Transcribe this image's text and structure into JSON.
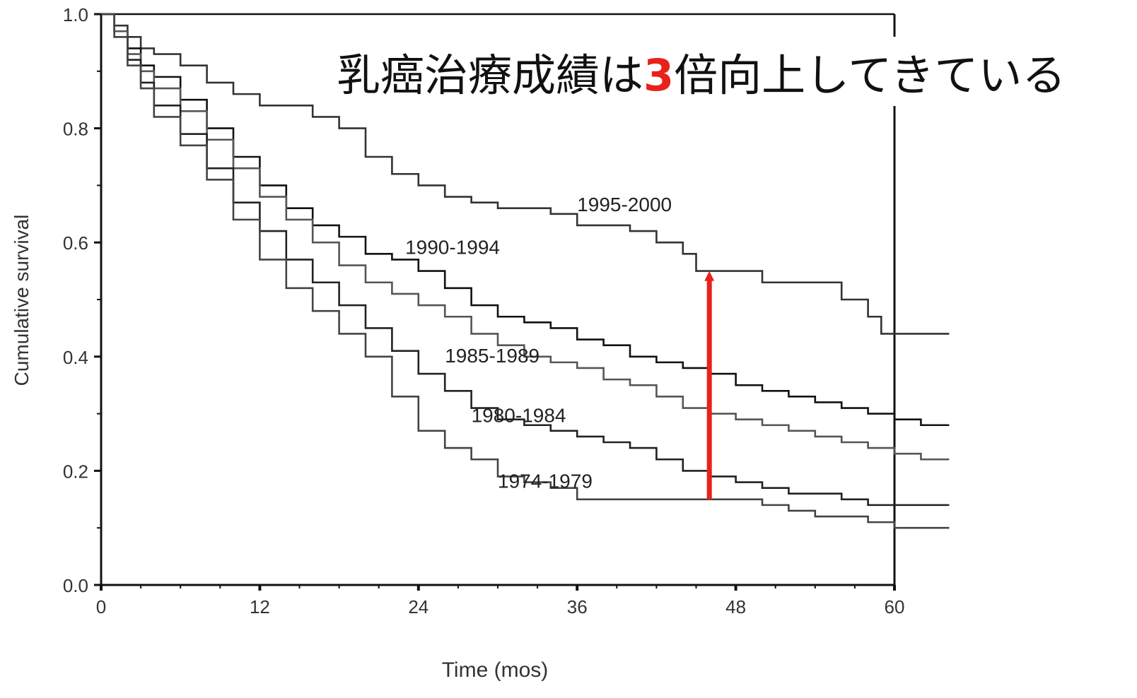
{
  "headline": {
    "before": "乳癌治療成績は",
    "emphasis": "3",
    "after": "倍向上してきている",
    "emphasis_color": "#e8221b"
  },
  "chart_data": {
    "type": "line",
    "subtype": "step",
    "xlabel": "Time (mos)",
    "ylabel": "Cumulative survival",
    "xlim": [
      0,
      62
    ],
    "ylim": [
      0,
      1.0
    ],
    "xticks": [
      0,
      12,
      24,
      36,
      48,
      60
    ],
    "yticks": [
      0.0,
      0.2,
      0.4,
      0.6,
      0.8,
      1.0
    ],
    "ytick_labels": [
      "0.0",
      "0.2",
      "0.4",
      "0.6",
      "0.8",
      "1.0"
    ],
    "grid": false,
    "series": [
      {
        "name": "1995-2000",
        "color": "#333333",
        "x": [
          0,
          1,
          2,
          3,
          4,
          6,
          8,
          10,
          12,
          14,
          16,
          18,
          20,
          22,
          24,
          26,
          28,
          30,
          32,
          34,
          36,
          38,
          40,
          42,
          44,
          45,
          47,
          50,
          52,
          54,
          56,
          58,
          59,
          62
        ],
        "y": [
          1.0,
          0.98,
          0.96,
          0.94,
          0.93,
          0.91,
          0.88,
          0.86,
          0.84,
          0.84,
          0.82,
          0.8,
          0.75,
          0.72,
          0.7,
          0.68,
          0.67,
          0.66,
          0.66,
          0.65,
          0.63,
          0.63,
          0.62,
          0.6,
          0.58,
          0.55,
          0.55,
          0.53,
          0.53,
          0.53,
          0.5,
          0.47,
          0.44,
          0.44
        ]
      },
      {
        "name": "1990-1994",
        "color": "#111111",
        "x": [
          0,
          1,
          2,
          3,
          4,
          6,
          8,
          10,
          12,
          14,
          16,
          18,
          20,
          22,
          24,
          26,
          28,
          30,
          32,
          34,
          36,
          38,
          40,
          42,
          44,
          46,
          48,
          50,
          52,
          54,
          56,
          58,
          60,
          62
        ],
        "y": [
          1.0,
          0.97,
          0.94,
          0.91,
          0.89,
          0.85,
          0.8,
          0.75,
          0.7,
          0.66,
          0.63,
          0.61,
          0.58,
          0.57,
          0.55,
          0.52,
          0.49,
          0.47,
          0.46,
          0.45,
          0.43,
          0.42,
          0.4,
          0.39,
          0.38,
          0.37,
          0.35,
          0.34,
          0.33,
          0.32,
          0.31,
          0.3,
          0.29,
          0.28
        ]
      },
      {
        "name": "1985-1989",
        "color": "#555555",
        "x": [
          0,
          1,
          2,
          3,
          4,
          6,
          8,
          10,
          12,
          14,
          16,
          18,
          20,
          22,
          24,
          26,
          28,
          30,
          32,
          34,
          36,
          38,
          40,
          42,
          44,
          46,
          48,
          50,
          52,
          54,
          56,
          58,
          60,
          62
        ],
        "y": [
          1.0,
          0.97,
          0.93,
          0.9,
          0.87,
          0.83,
          0.78,
          0.73,
          0.68,
          0.64,
          0.6,
          0.56,
          0.53,
          0.51,
          0.49,
          0.47,
          0.44,
          0.42,
          0.4,
          0.39,
          0.38,
          0.36,
          0.35,
          0.33,
          0.31,
          0.3,
          0.29,
          0.28,
          0.27,
          0.26,
          0.25,
          0.24,
          0.23,
          0.22
        ]
      },
      {
        "name": "1980-1984",
        "color": "#222222",
        "x": [
          0,
          1,
          2,
          3,
          4,
          6,
          8,
          10,
          12,
          14,
          16,
          18,
          20,
          22,
          24,
          26,
          28,
          30,
          32,
          34,
          36,
          38,
          40,
          42,
          44,
          46,
          48,
          50,
          52,
          54,
          56,
          58,
          60,
          62
        ],
        "y": [
          1.0,
          0.96,
          0.92,
          0.88,
          0.84,
          0.79,
          0.73,
          0.67,
          0.62,
          0.57,
          0.53,
          0.49,
          0.45,
          0.41,
          0.37,
          0.34,
          0.31,
          0.29,
          0.28,
          0.27,
          0.26,
          0.25,
          0.24,
          0.22,
          0.2,
          0.19,
          0.18,
          0.17,
          0.16,
          0.16,
          0.15,
          0.14,
          0.14,
          0.14
        ]
      },
      {
        "name": "1974-1979",
        "color": "#444444",
        "x": [
          0,
          1,
          2,
          3,
          4,
          6,
          8,
          10,
          12,
          14,
          16,
          18,
          20,
          22,
          24,
          26,
          28,
          30,
          32,
          34,
          36,
          38,
          40,
          42,
          44,
          46,
          48,
          50,
          52,
          54,
          56,
          58,
          60,
          62
        ],
        "y": [
          1.0,
          0.96,
          0.91,
          0.87,
          0.82,
          0.77,
          0.71,
          0.64,
          0.57,
          0.52,
          0.48,
          0.44,
          0.4,
          0.33,
          0.27,
          0.24,
          0.22,
          0.19,
          0.18,
          0.17,
          0.15,
          0.15,
          0.15,
          0.15,
          0.15,
          0.15,
          0.15,
          0.14,
          0.13,
          0.12,
          0.12,
          0.11,
          0.1,
          0.1
        ]
      }
    ],
    "annotations": [
      {
        "type": "arrow",
        "x": 46,
        "y_from": 0.15,
        "y_to": 0.55,
        "color": "#e8221b"
      }
    ]
  }
}
